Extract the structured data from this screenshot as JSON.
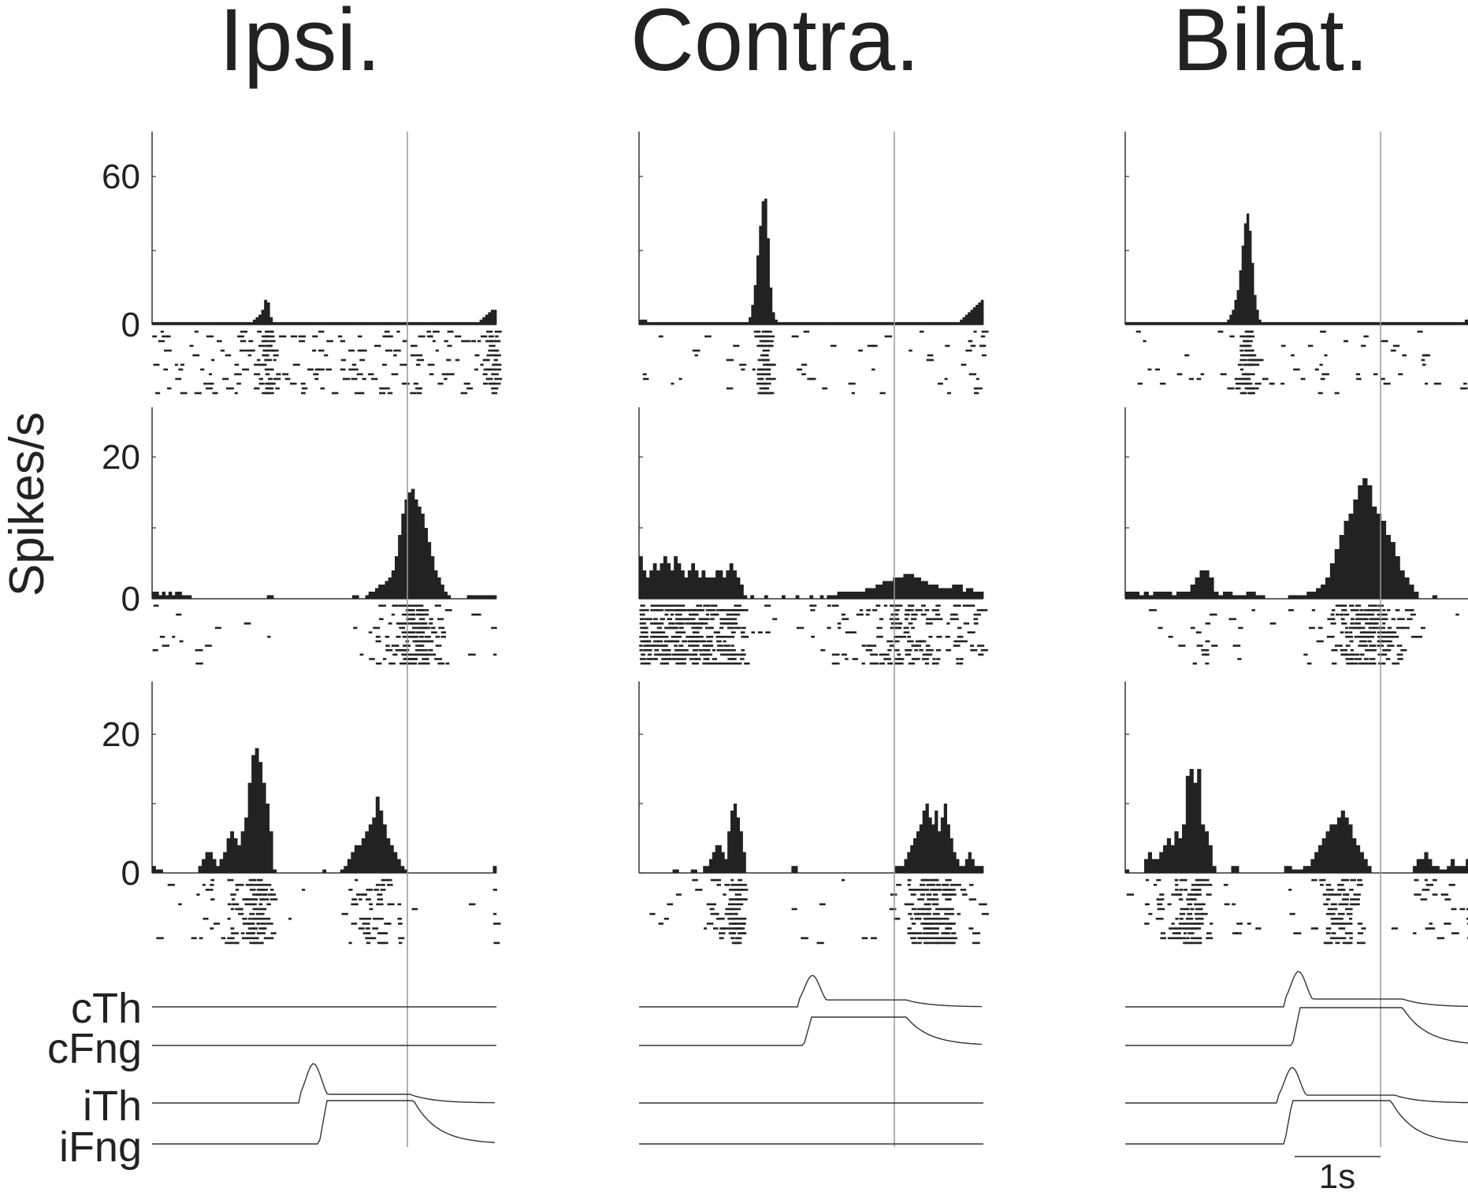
{
  "columns": [
    "Ipsi.",
    "Contra.",
    "Bilat."
  ],
  "ylabel": "Spikes/s",
  "rows": [
    {
      "yticks": [
        "60",
        "0"
      ],
      "ymax": 60
    },
    {
      "yticks": [
        "20",
        "0"
      ],
      "ymax": 20
    },
    {
      "yticks": [
        "20",
        "0"
      ],
      "ymax": 20
    }
  ],
  "trace_labels": [
    "cTh",
    "cFng",
    "iTh",
    "iFng"
  ],
  "scalebar_label": "1s",
  "colors": {
    "bars": "#222222",
    "line": "#999999",
    "text": "#222222"
  },
  "chart_data": [
    {
      "type": "bar",
      "row": 0,
      "column": "Ipsi.",
      "bin_s": 0.05,
      "x_range_s": [
        -3.75,
        1.25
      ],
      "values": [
        1,
        1,
        1,
        1,
        1,
        1,
        1,
        1,
        1,
        1,
        1,
        1,
        1,
        1,
        1,
        1,
        1,
        1,
        1,
        1,
        1,
        1,
        1,
        1,
        1,
        1,
        1,
        1,
        1,
        1,
        1,
        1,
        1,
        1,
        1,
        1,
        2,
        3,
        4,
        6,
        10,
        9,
        3,
        1,
        1,
        1,
        1,
        1,
        1,
        1,
        1,
        1,
        1,
        1,
        1,
        1,
        1,
        1,
        1,
        1,
        1,
        1,
        1,
        1,
        1,
        1,
        1,
        1,
        1,
        1,
        1,
        1,
        1,
        1,
        1,
        1,
        1,
        1,
        1,
        1,
        1,
        1,
        1,
        1,
        1,
        1,
        1,
        1,
        1,
        1,
        1,
        1,
        1,
        1,
        1,
        1,
        1,
        1,
        1,
        1,
        1,
        1,
        1,
        1,
        1,
        1,
        1,
        1,
        1,
        1,
        1,
        1,
        1,
        1,
        1,
        1,
        1,
        2,
        3,
        4,
        5,
        6,
        6
      ]
    },
    {
      "type": "bar",
      "row": 0,
      "column": "Contra.",
      "bin_s": 0.05,
      "x_range_s": [
        -3.75,
        1.25
      ],
      "values": [
        2,
        2,
        2,
        1,
        1,
        1,
        1,
        1,
        1,
        1,
        1,
        1,
        1,
        1,
        1,
        1,
        1,
        1,
        1,
        1,
        1,
        1,
        1,
        1,
        1,
        1,
        1,
        1,
        1,
        1,
        1,
        1,
        1,
        1,
        1,
        1,
        1,
        1,
        1,
        1,
        1,
        1,
        3,
        8,
        16,
        28,
        40,
        50,
        51,
        35,
        15,
        5,
        2,
        1,
        1,
        1,
        1,
        1,
        1,
        1,
        1,
        1,
        1,
        1,
        1,
        1,
        1,
        1,
        1,
        1,
        1,
        1,
        1,
        1,
        1,
        1,
        1,
        1,
        1,
        1,
        1,
        1,
        1,
        1,
        1,
        1,
        1,
        1,
        1,
        1,
        1,
        1,
        1,
        1,
        1,
        1,
        1,
        1,
        1,
        1,
        1,
        1,
        1,
        1,
        1,
        1,
        1,
        1,
        1,
        1,
        1,
        1,
        1,
        1,
        1,
        1,
        1,
        1,
        1,
        1,
        1,
        1,
        1,
        2,
        3,
        4,
        5,
        6,
        7,
        8,
        9,
        10
      ]
    },
    {
      "type": "bar",
      "row": 0,
      "column": "Bilat.",
      "bin_s": 0.05,
      "x_range_s": [
        -3.75,
        1.25
      ],
      "values": [
        1,
        1,
        1,
        1,
        1,
        1,
        1,
        1,
        1,
        1,
        1,
        1,
        1,
        1,
        1,
        1,
        1,
        1,
        1,
        1,
        1,
        1,
        1,
        1,
        1,
        1,
        1,
        1,
        1,
        1,
        1,
        1,
        1,
        1,
        1,
        1,
        1,
        1,
        1,
        1,
        1,
        1,
        2,
        4,
        6,
        10,
        14,
        22,
        32,
        41,
        45,
        38,
        25,
        12,
        6,
        2,
        1,
        1,
        1,
        1,
        1,
        1,
        1,
        1,
        1,
        1,
        1,
        1,
        1,
        1,
        1,
        1,
        1,
        1,
        1,
        1,
        1,
        1,
        1,
        1,
        1,
        1,
        1,
        1,
        1,
        1,
        1,
        1,
        1,
        1,
        1,
        1,
        1,
        1,
        1,
        1,
        1,
        1,
        1,
        1,
        1,
        1,
        1,
        1,
        1,
        1,
        1,
        1,
        1,
        1,
        1,
        1,
        1,
        1,
        1,
        1,
        1,
        1,
        1,
        1,
        1,
        1,
        1,
        1,
        1,
        1,
        1,
        1,
        1,
        1,
        1,
        1,
        1,
        1,
        1,
        1,
        1,
        1,
        1,
        1,
        2,
        2
      ]
    },
    {
      "type": "bar",
      "row": 1,
      "column": "Ipsi.",
      "bin_s": 0.05,
      "x_range_s": [
        -3.75,
        1.25
      ],
      "values": [
        1,
        1,
        0.5,
        1,
        0.5,
        1,
        0.5,
        1,
        1,
        0.5,
        0.5,
        0.5,
        0,
        0,
        0,
        0,
        0,
        0,
        0,
        0,
        0,
        0,
        0,
        0,
        0,
        0,
        0,
        0,
        0,
        0,
        0,
        0,
        0,
        0,
        0,
        0.5,
        0.5,
        0,
        0,
        0,
        0,
        0,
        0,
        0,
        0,
        0,
        0,
        0,
        0,
        0,
        0,
        0,
        0,
        0,
        0,
        0,
        0,
        0,
        0,
        0,
        0,
        0.5,
        0.5,
        0,
        0,
        0.5,
        1,
        1,
        1.5,
        2,
        2,
        2.5,
        3,
        4,
        6,
        9,
        12,
        14,
        15,
        15.5,
        14,
        13,
        12,
        10,
        8,
        6,
        4,
        3,
        2,
        1,
        0.5,
        0,
        0,
        0,
        0,
        0,
        0.5,
        0.5,
        0.5,
        0.5,
        0.5,
        0.5,
        0.5,
        0.5,
        0.5
      ]
    },
    {
      "type": "bar",
      "row": 1,
      "column": "Contra.",
      "bin_s": 0.05,
      "x_range_s": [
        -3.75,
        1.25
      ],
      "values": [
        6,
        4,
        3,
        4,
        5,
        4,
        5,
        6,
        5,
        4,
        6,
        5,
        4,
        3,
        4,
        5,
        4,
        3,
        4,
        3,
        3,
        3,
        4,
        4,
        3,
        4,
        5,
        4,
        3,
        2,
        0.5,
        0,
        0.5,
        0,
        0,
        0,
        0.5,
        0,
        0,
        0,
        0,
        0.5,
        0,
        0,
        0,
        0.5,
        0,
        0,
        0,
        0.5,
        0,
        0,
        0.5,
        0,
        0.5,
        0.5,
        0.5,
        1,
        1,
        1,
        1,
        1,
        1,
        1,
        1,
        1.5,
        1.5,
        1.5,
        2,
        2,
        2.5,
        2.5,
        2.5,
        3,
        3,
        3,
        3.5,
        3.5,
        3.5,
        3,
        3,
        2.5,
        2.5,
        2,
        2,
        2,
        1.5,
        1.5,
        1.5,
        1.5,
        2,
        2,
        2,
        1,
        1.5,
        1.5,
        1,
        1,
        1
      ]
    },
    {
      "type": "bar",
      "row": 1,
      "column": "Bilat.",
      "bin_s": 0.05,
      "x_range_s": [
        -3.75,
        1.25
      ],
      "values": [
        1,
        1,
        1,
        0.5,
        1,
        0.5,
        1,
        1,
        1,
        1,
        0.5,
        1,
        1,
        1,
        2,
        3,
        4,
        4,
        3,
        1,
        0.5,
        1,
        1,
        0.5,
        0.5,
        0.5,
        1,
        1,
        0.5,
        0.5,
        0,
        0,
        0,
        0,
        0,
        0.5,
        0.5,
        0.5,
        0.5,
        1,
        1,
        1.5,
        2,
        3,
        5,
        7,
        9,
        11,
        12,
        14,
        16,
        17,
        16,
        13,
        12,
        11,
        9,
        8,
        6,
        4,
        3,
        2,
        1,
        0,
        0,
        0,
        0.5,
        0,
        0,
        0,
        0,
        0,
        0,
        0
      ]
    },
    {
      "type": "bar",
      "row": 2,
      "column": "Ipsi.",
      "bin_s": 0.05,
      "x_range_s": [
        -3.75,
        1.25
      ],
      "values": [
        1,
        0.5,
        0.5,
        0,
        0,
        0,
        0,
        0,
        0,
        0,
        0,
        0,
        0,
        1,
        2,
        3,
        3,
        2,
        1,
        2,
        3,
        5,
        6,
        5,
        4,
        6,
        8,
        13,
        17,
        18,
        16,
        13,
        10,
        6,
        0.5,
        0,
        0,
        0,
        0,
        0,
        0,
        0,
        0,
        0,
        0,
        0,
        0,
        0,
        0.5,
        0,
        0,
        0,
        0,
        0.5,
        1,
        2,
        3,
        4,
        4,
        5,
        6,
        7,
        8,
        11,
        9,
        7,
        5,
        4,
        3,
        2,
        1,
        0.5,
        0,
        0,
        0,
        0,
        0,
        0,
        0,
        0,
        0,
        0,
        0,
        0,
        0,
        0,
        0,
        0,
        0,
        0,
        0,
        0,
        0,
        0,
        0,
        0,
        1
      ]
    },
    {
      "type": "bar",
      "row": 2,
      "column": "Contra.",
      "bin_s": 0.05,
      "x_range_s": [
        -3.75,
        1.25
      ],
      "values": [
        0,
        0,
        0,
        0,
        0,
        0,
        0,
        0,
        0,
        0,
        0,
        0.5,
        0.5,
        0,
        0,
        0,
        0,
        0.5,
        0.5,
        0,
        0,
        1,
        1,
        2,
        3,
        4,
        4,
        3,
        2,
        6,
        9,
        10,
        8,
        6,
        3,
        0,
        0,
        0,
        0,
        0,
        0,
        0,
        0,
        0,
        0,
        0,
        0,
        0,
        0,
        0,
        1,
        1,
        0,
        0,
        0,
        0,
        0,
        0,
        0,
        0,
        0,
        0,
        0,
        0,
        0,
        0,
        0,
        0,
        0,
        0,
        0,
        0,
        0,
        0,
        0,
        0,
        0,
        0,
        0,
        0,
        0,
        0,
        0,
        0,
        1,
        1,
        1,
        2,
        3,
        4,
        5,
        6,
        7,
        9,
        10,
        8,
        7,
        9,
        6,
        8,
        10,
        7,
        5,
        3,
        2,
        1,
        1,
        2,
        3,
        2,
        1,
        1,
        1
      ]
    },
    {
      "type": "bar",
      "row": 2,
      "column": "Bilat.",
      "bin_s": 0.05,
      "x_range_s": [
        -3.75,
        1.25
      ],
      "values": [
        0.5,
        0,
        0,
        0,
        0,
        2,
        3,
        2,
        2,
        3,
        4,
        5,
        4,
        6,
        5,
        7,
        14,
        15,
        13,
        15,
        7,
        6,
        4,
        1,
        0,
        0,
        0,
        0,
        1,
        1,
        0,
        0,
        0,
        0,
        0,
        0,
        0,
        0,
        0,
        0,
        0,
        0,
        1,
        1,
        0.5,
        0.5,
        0.5,
        1,
        1,
        2,
        3,
        4,
        5,
        6,
        7,
        7,
        8,
        9,
        8,
        7,
        5,
        4,
        3,
        2,
        1,
        0,
        0,
        0,
        0,
        0,
        0,
        0,
        0,
        0,
        0,
        0,
        1,
        2,
        2,
        3,
        2,
        1,
        1,
        0.5,
        0.5,
        1,
        2,
        1,
        1,
        1,
        2
      ]
    }
  ]
}
